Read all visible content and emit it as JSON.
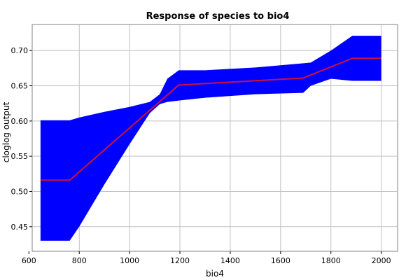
{
  "chart_data": {
    "type": "line",
    "title": "Response of species to bio4",
    "xlabel": "bio4",
    "ylabel": "cloglog output",
    "xlim": [
      613,
      2065
    ],
    "ylim": [
      0.415,
      0.737
    ],
    "x_ticks": [
      600,
      800,
      1000,
      1200,
      1400,
      1600,
      1800,
      2000
    ],
    "x_tick_labels": [
      "600",
      "800",
      "1000",
      "1200",
      "1400",
      "1600",
      "1800",
      "2000"
    ],
    "y_ticks": [
      0.45,
      0.5,
      0.55,
      0.6,
      0.65,
      0.7
    ],
    "y_tick_labels": [
      "0.45",
      "0.50",
      "0.55",
      "0.60",
      "0.65",
      "0.70"
    ],
    "grid": true,
    "series": [
      {
        "role": "mean",
        "color": "#d0103a",
        "x": [
          646,
          762,
          1195,
          1690,
          1885,
          2000
        ],
        "y": [
          0.516,
          0.516,
          0.651,
          0.661,
          0.689,
          0.689
        ]
      }
    ],
    "band": {
      "color": "#0000ff",
      "x": [
        646,
        762,
        800,
        900,
        1000,
        1080,
        1120,
        1150,
        1195,
        1300,
        1500,
        1690,
        1720,
        1800,
        1885,
        2000
      ],
      "upper": [
        0.601,
        0.601,
        0.605,
        0.613,
        0.62,
        0.627,
        0.638,
        0.66,
        0.672,
        0.672,
        0.676,
        0.682,
        0.683,
        0.7,
        0.721,
        0.721
      ],
      "lower": [
        0.43,
        0.43,
        0.45,
        0.51,
        0.567,
        0.611,
        0.624,
        0.627,
        0.629,
        0.633,
        0.638,
        0.64,
        0.65,
        0.66,
        0.657,
        0.657
      ]
    }
  }
}
